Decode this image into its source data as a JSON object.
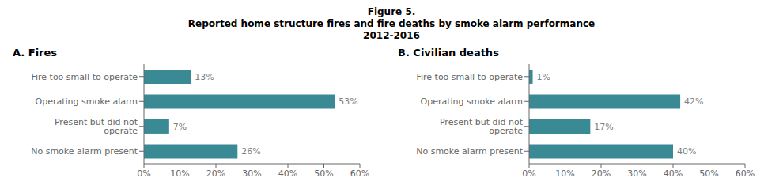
{
  "title": "Figure 5.",
  "subtitle": [
    "Reported home structure fires and fire deaths by smoke alarm performance",
    "2012-2016"
  ],
  "chart_data": [
    {
      "type": "bar",
      "orientation": "horizontal",
      "title": "A. Fires",
      "categories": [
        "Fire too small to operate",
        "Operating smoke alarm",
        "Present but did not operate",
        "No smoke alarm present"
      ],
      "values": [
        13,
        53,
        7,
        26
      ],
      "value_labels": [
        "13%",
        "53%",
        "7%",
        "26%"
      ],
      "data_labels": true,
      "color": "#3a8a96",
      "xlim": [
        0,
        60
      ],
      "xticks": [
        {
          "value": 0,
          "label": "0%"
        },
        {
          "value": 10,
          "label": "10%"
        },
        {
          "value": 20,
          "label": "20%"
        },
        {
          "value": 30,
          "label": "30%"
        },
        {
          "value": 40,
          "label": "40%"
        },
        {
          "value": 50,
          "label": "50%"
        },
        {
          "value": 60,
          "label": "60%"
        }
      ],
      "grid": false
    },
    {
      "type": "bar",
      "orientation": "horizontal",
      "title": "B. Civilian deaths",
      "categories": [
        "Fire too small to operate",
        "Operating smoke alarm",
        "Present but did not operate",
        "No smoke alarm present"
      ],
      "values": [
        1,
        42,
        17,
        40
      ],
      "value_labels": [
        "1%",
        "42%",
        "17%",
        "40%"
      ],
      "data_labels": true,
      "color": "#3a8a96",
      "xlim": [
        0,
        60
      ],
      "xticks": [
        {
          "value": 0,
          "label": "0%"
        },
        {
          "value": 10,
          "label": "10%"
        },
        {
          "value": 20,
          "label": "20%"
        },
        {
          "value": 30,
          "label": "30%"
        },
        {
          "value": 40,
          "label": "40%"
        },
        {
          "value": 50,
          "label": "50%"
        },
        {
          "value": 60,
          "label": "60%"
        }
      ],
      "grid": false
    }
  ]
}
